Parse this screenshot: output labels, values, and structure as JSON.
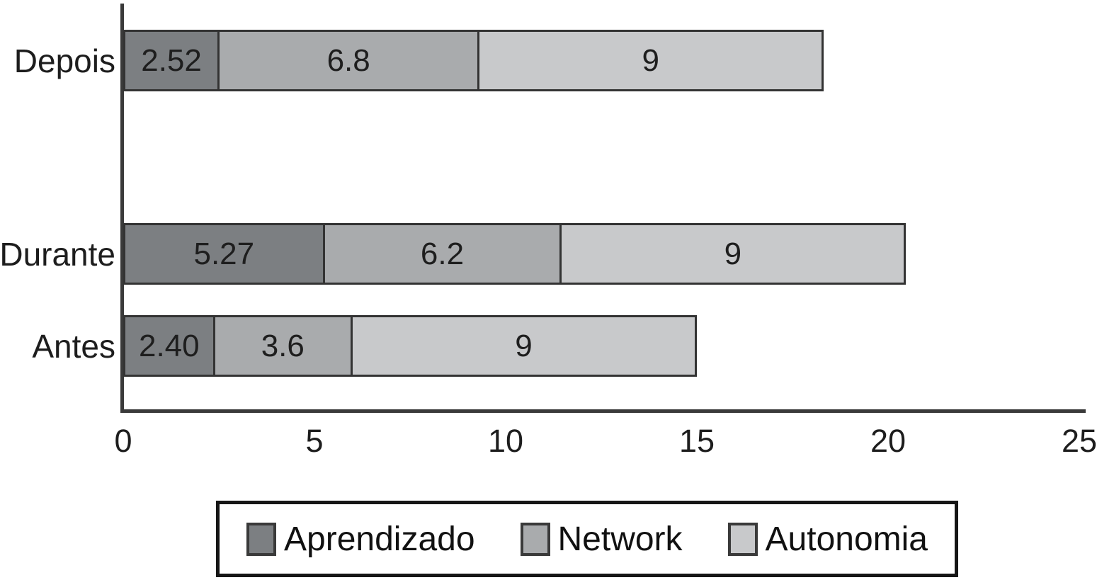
{
  "chart_data": {
    "type": "bar",
    "orientation": "horizontal",
    "stacked": true,
    "title": "",
    "xlabel": "",
    "ylabel": "",
    "categories": [
      "Depois",
      "Durante",
      "Antes"
    ],
    "series": [
      {
        "name": "Aprendizado",
        "color": "#7c7f82",
        "values": [
          2.52,
          5.27,
          2.4
        ]
      },
      {
        "name": "Network",
        "color": "#a9abad",
        "values": [
          6.8,
          6.2,
          3.6
        ]
      },
      {
        "name": "Autonomia",
        "color": "#c8c9cb",
        "values": [
          9,
          9,
          9
        ]
      }
    ],
    "value_labels": [
      [
        "2.52",
        "6.8",
        "9"
      ],
      [
        "5.27",
        "6.2",
        "9"
      ],
      [
        "2.40",
        "3.6",
        "9"
      ]
    ],
    "totals": [
      18.32,
      20.47,
      15.0
    ],
    "xlim": [
      0,
      25
    ],
    "x_ticks": [
      0,
      5,
      10,
      15,
      20,
      25
    ],
    "x_tick_labels": [
      "0",
      "5",
      "10",
      "15",
      "20",
      "25"
    ],
    "grid": false,
    "legend_position": "bottom",
    "colors": {
      "bar_border": "#333333",
      "axis": "#3a3a3a",
      "text": "#1d1d1d",
      "legend_border": "#161616",
      "background": "#ffffff"
    }
  }
}
